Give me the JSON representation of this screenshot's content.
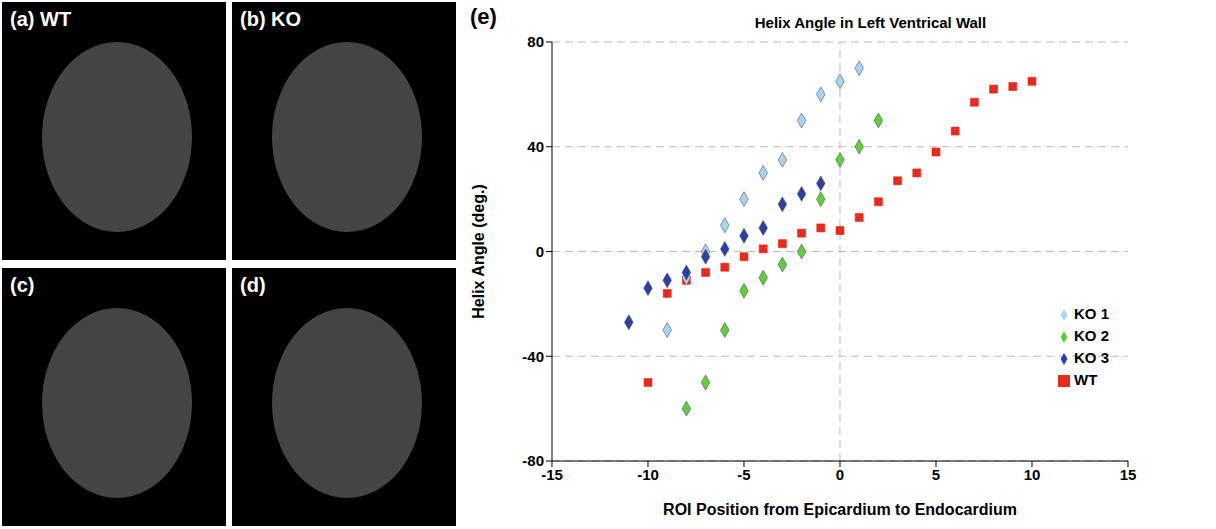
{
  "panels": [
    {
      "label": "(a) WT"
    },
    {
      "label": "(b) KO"
    },
    {
      "label": "(c)"
    },
    {
      "label": "(d)"
    }
  ],
  "chart_data": {
    "type": "scatter",
    "title": "Helix Angle in Left Ventrical Wall",
    "annotations": [
      "(e)"
    ],
    "x_label": "ROI  Position from Epicardium to Endocardium",
    "y_label": "Helix Angle (deg.)",
    "xlim": [
      -15,
      15
    ],
    "xticks": [
      -15,
      -10,
      -5,
      0,
      5,
      10,
      15
    ],
    "ylim": [
      -80,
      80
    ],
    "yticks": [
      -80,
      -40,
      0,
      40,
      80
    ],
    "grid": true,
    "legend": "lower right",
    "series": [
      {
        "name": "WT",
        "color": "#e8291c",
        "marker": "square",
        "x": [
          -10,
          -9,
          -8,
          -7,
          -6,
          -5,
          -4,
          -3,
          -2,
          -1,
          0,
          1,
          2,
          3,
          4,
          5,
          6,
          7,
          8,
          9,
          10
        ],
        "values": [
          -50,
          -16,
          -11,
          -8,
          -6,
          -2,
          1,
          3,
          7,
          9,
          8,
          13,
          19,
          27,
          30,
          38,
          46,
          57,
          62,
          63,
          65
        ]
      },
      {
        "name": "KO 1",
        "color": "#a6d4f2",
        "marker": "diamond",
        "x": [
          -9,
          -8,
          -7,
          -6,
          -5,
          -4,
          -3,
          -2,
          -1,
          0,
          1
        ],
        "values": [
          -30,
          -10,
          0,
          10,
          20,
          30,
          35,
          50,
          60,
          65,
          70
        ]
      },
      {
        "name": "KO 2",
        "color": "#5fcf3a",
        "marker": "diamond",
        "x": [
          -8,
          -7,
          -6,
          -5,
          -4,
          -3,
          -2,
          -1,
          0,
          1,
          2
        ],
        "values": [
          -60,
          -50,
          -30,
          -15,
          -10,
          -5,
          0,
          20,
          35,
          40,
          50
        ]
      },
      {
        "name": "KO 3",
        "color": "#2a3fa8",
        "marker": "diamond",
        "x": [
          -11,
          -10,
          -9,
          -8,
          -7,
          -6,
          -5,
          -4,
          -3,
          -2,
          -1
        ],
        "values": [
          -27,
          -14,
          -11,
          -8,
          -2,
          1,
          6,
          9,
          18,
          22,
          26
        ]
      }
    ]
  }
}
